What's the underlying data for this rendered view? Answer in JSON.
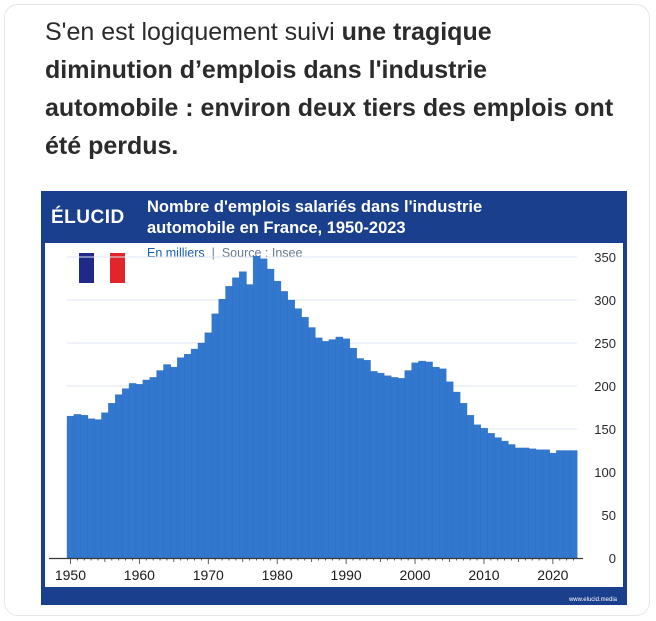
{
  "post": {
    "text_normal": "S'en est logiquement suivi ",
    "text_bold": "une tragique diminution d’emplois dans l'industrie automobile : environ deux tiers des emplois ont été perdus."
  },
  "figure": {
    "logo": "ÉLUCID",
    "watermark": "www.elucid.media",
    "flag_colors": [
      "#1f2a88",
      "#ffffff",
      "#e2252b"
    ],
    "colors": {
      "frame": "#1a3f8c",
      "bar": "#3378cf",
      "bar_edge": "#2a69bd"
    }
  },
  "chart_data": {
    "type": "bar",
    "title": "Nombre d'emplois salariés dans l'industrie automobile en France, 1950-2023",
    "subtitle_unit": "En milliers",
    "subtitle_source": "Source : Insee",
    "xlabel": "",
    "ylabel": "",
    "xlim": [
      1950,
      2023
    ],
    "ylim": [
      0,
      350
    ],
    "yticks": [
      0,
      50,
      100,
      150,
      200,
      250,
      300,
      350
    ],
    "xticks": [
      1950,
      1960,
      1970,
      1980,
      1990,
      2000,
      2010,
      2020
    ],
    "y_axis_side": "right",
    "grid": true,
    "x": [
      1950,
      1951,
      1952,
      1953,
      1954,
      1955,
      1956,
      1957,
      1958,
      1959,
      1960,
      1961,
      1962,
      1963,
      1964,
      1965,
      1966,
      1967,
      1968,
      1969,
      1970,
      1971,
      1972,
      1973,
      1974,
      1975,
      1976,
      1977,
      1978,
      1979,
      1980,
      1981,
      1982,
      1983,
      1984,
      1985,
      1986,
      1987,
      1988,
      1989,
      1990,
      1991,
      1992,
      1993,
      1994,
      1995,
      1996,
      1997,
      1998,
      1999,
      2000,
      2001,
      2002,
      2003,
      2004,
      2005,
      2006,
      2007,
      2008,
      2009,
      2010,
      2011,
      2012,
      2013,
      2014,
      2015,
      2016,
      2017,
      2018,
      2019,
      2020,
      2021,
      2022,
      2023
    ],
    "values": [
      165,
      167,
      166,
      162,
      161,
      169,
      180,
      190,
      197,
      203,
      202,
      207,
      210,
      218,
      225,
      222,
      233,
      237,
      243,
      250,
      262,
      284,
      301,
      316,
      326,
      333,
      318,
      351,
      348,
      336,
      322,
      310,
      300,
      290,
      280,
      268,
      256,
      252,
      254,
      257,
      255,
      244,
      232,
      230,
      217,
      215,
      212,
      210,
      209,
      218,
      227,
      229,
      228,
      222,
      220,
      205,
      193,
      180,
      166,
      155,
      151,
      145,
      140,
      136,
      132,
      128,
      128,
      127,
      126,
      126,
      122,
      125,
      125,
      125
    ]
  }
}
